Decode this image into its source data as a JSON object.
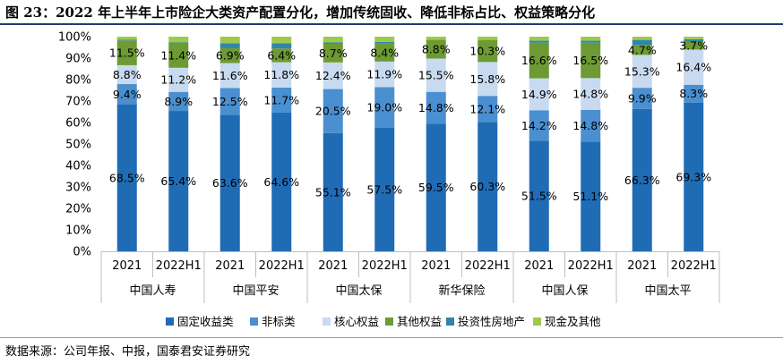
{
  "figure": {
    "title": "图 23：2022 年上半年上市险企大类资产配置分化，增加传统固收、降低非标占比、权益策略分化",
    "source": "数据来源：公司年报、中报，国泰君安证券研究"
  },
  "chart_data": {
    "type": "bar",
    "stacked": true,
    "title": "",
    "xlabel": "",
    "ylabel": "",
    "ylim": [
      0,
      100
    ],
    "y_ticks": [
      "0%",
      "10%",
      "20%",
      "30%",
      "40%",
      "50%",
      "60%",
      "70%",
      "80%",
      "90%",
      "100%"
    ],
    "grid": false,
    "legend_position": "bottom",
    "companies": [
      "中国人寿",
      "中国平安",
      "中国太保",
      "新华保险",
      "中国人保",
      "中国太平"
    ],
    "periods": [
      "2021",
      "2022H1"
    ],
    "categories": [
      "中国人寿 2021",
      "中国人寿 2022H1",
      "中国平安 2021",
      "中国平安 2022H1",
      "中国太保 2021",
      "中国太保 2022H1",
      "新华保险 2021",
      "新华保险 2022H1",
      "中国人保 2021",
      "中国人保 2022H1",
      "中国太平 2021",
      "中国太平 2022H1"
    ],
    "series": [
      {
        "name": "固定收益类",
        "color": "#1f6cb5",
        "values": [
          68.5,
          65.4,
          63.6,
          64.6,
          55.1,
          57.5,
          59.5,
          60.3,
          51.5,
          51.1,
          66.3,
          69.3
        ],
        "labels": [
          "68.5%",
          "65.4%",
          "63.6%",
          "64.6%",
          "55.1%",
          "57.5%",
          "59.5%",
          "60.3%",
          "51.5%",
          "51.1%",
          "66.3%",
          "69.3%"
        ]
      },
      {
        "name": "非标类",
        "color": "#4a8fd0",
        "values": [
          9.4,
          8.9,
          12.5,
          11.7,
          20.5,
          19.0,
          14.8,
          12.1,
          14.2,
          14.8,
          9.9,
          8.3
        ],
        "labels": [
          "9.4%",
          "8.9%",
          "12.5%",
          "11.7%",
          "20.5%",
          "19.0%",
          "14.8%",
          "12.1%",
          "14.2%",
          "14.8%",
          "9.9%",
          "8.3%"
        ]
      },
      {
        "name": "核心权益",
        "color": "#c8daf0",
        "values": [
          8.8,
          11.2,
          11.6,
          11.8,
          12.4,
          11.9,
          15.5,
          15.8,
          14.9,
          14.8,
          15.3,
          16.4
        ],
        "labels": [
          "8.8%",
          "11.2%",
          "11.6%",
          "11.8%",
          "12.4%",
          "11.9%",
          "15.5%",
          "15.8%",
          "14.9%",
          "14.8%",
          "15.3%",
          "16.4%"
        ]
      },
      {
        "name": "其他权益",
        "color": "#6e9a33",
        "values": [
          11.5,
          11.4,
          6.9,
          6.4,
          8.7,
          8.4,
          8.8,
          10.3,
          16.6,
          16.5,
          4.7,
          3.7
        ],
        "labels": [
          "11.5%",
          "11.4%",
          "6.9%",
          "6.4%",
          "8.7%",
          "8.4%",
          "8.8%",
          "10.3%",
          "16.6%",
          "16.5%",
          "4.7%",
          "3.7%"
        ]
      },
      {
        "name": "投资性房地产",
        "color": "#2e86a9",
        "values": [
          0.4,
          0.4,
          2.3,
          2.4,
          0.7,
          0.8,
          0.0,
          0.0,
          0.9,
          0.9,
          2.3,
          1.1
        ],
        "labels": []
      },
      {
        "name": "现金及其他",
        "color": "#9ec94a",
        "values": [
          1.4,
          2.7,
          3.1,
          3.1,
          2.6,
          2.4,
          1.4,
          1.5,
          1.9,
          1.9,
          1.5,
          1.2
        ],
        "labels": []
      }
    ]
  }
}
